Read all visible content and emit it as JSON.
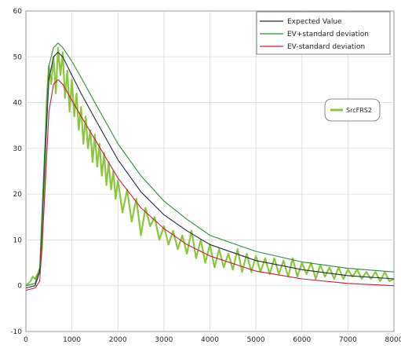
{
  "chart_data": {
    "type": "line",
    "xlim": [
      0,
      8000
    ],
    "ylim": [
      -10,
      60
    ],
    "xticks": [
      0,
      1000,
      2000,
      3000,
      4000,
      5000,
      6000,
      7000,
      8000
    ],
    "yticks": [
      -10,
      0,
      10,
      20,
      30,
      40,
      50,
      60
    ],
    "grid": true,
    "legend": {
      "placement": "top-right",
      "entries": [
        {
          "label": "Expected Value",
          "color": "#1f2a44"
        },
        {
          "label": "EV+standard deviation",
          "color": "#2d8a3a"
        },
        {
          "label": "EV-standard deviation",
          "color": "#c0203a"
        }
      ]
    },
    "annotation": {
      "label": "SrcFRS2",
      "color": "#8cc63f"
    },
    "series": [
      {
        "name": "Expected Value",
        "color": "#1f2a44",
        "x": [
          0,
          200,
          300,
          400,
          500,
          600,
          700,
          800,
          1000,
          1200,
          1500,
          2000,
          2500,
          3000,
          3500,
          4000,
          5000,
          6000,
          7000,
          8000
        ],
        "y": [
          -0.5,
          0,
          3,
          25,
          45,
          50,
          51,
          50,
          46,
          42,
          36.5,
          27.5,
          20.5,
          15.5,
          12,
          9,
          5.5,
          3.5,
          2.2,
          1.5
        ]
      },
      {
        "name": "EV+standard deviation",
        "color": "#2d8a3a",
        "x": [
          0,
          200,
          300,
          400,
          500,
          600,
          700,
          800,
          1000,
          1200,
          1500,
          2000,
          2500,
          3000,
          3500,
          4000,
          5000,
          6000,
          7000,
          8000
        ],
        "y": [
          0,
          0.5,
          4,
          28,
          48,
          52,
          53,
          52,
          49,
          45.5,
          40,
          31,
          24,
          18.5,
          14.5,
          11,
          7.5,
          5.2,
          3.8,
          3
        ]
      },
      {
        "name": "EV-standard deviation",
        "color": "#c0203a",
        "x": [
          0,
          200,
          300,
          400,
          500,
          600,
          700,
          800,
          1000,
          1200,
          1500,
          2000,
          2500,
          3000,
          3500,
          4000,
          5000,
          6000,
          7000,
          8000
        ],
        "y": [
          -1,
          -0.5,
          1,
          18,
          38,
          44,
          45,
          44,
          40.5,
          37,
          32,
          23.5,
          17,
          12.5,
          9,
          6.5,
          3.2,
          1.5,
          0.5,
          0
        ]
      },
      {
        "name": "SrcFRS2",
        "color": "#8cc63f",
        "x": [
          0,
          100,
          150,
          200,
          250,
          300,
          350,
          400,
          450,
          500,
          550,
          600,
          650,
          700,
          750,
          800,
          850,
          900,
          950,
          1000,
          1050,
          1100,
          1150,
          1200,
          1250,
          1300,
          1350,
          1400,
          1450,
          1500,
          1550,
          1600,
          1650,
          1700,
          1750,
          1800,
          1850,
          1900,
          1950,
          2000,
          2100,
          2200,
          2300,
          2400,
          2500,
          2600,
          2700,
          2800,
          2900,
          3000,
          3100,
          3200,
          3300,
          3400,
          3500,
          3600,
          3700,
          3800,
          3900,
          4000,
          4100,
          4200,
          4300,
          4400,
          4500,
          4600,
          4700,
          4800,
          4900,
          5000,
          5100,
          5200,
          5300,
          5400,
          5500,
          5600,
          5700,
          5800,
          5900,
          6000,
          6100,
          6200,
          6300,
          6400,
          6500,
          6600,
          6700,
          6800,
          6900,
          7000,
          7100,
          7200,
          7300,
          7400,
          7500,
          7600,
          7700,
          7800,
          7900,
          8000
        ],
        "y": [
          0,
          1,
          2,
          1.5,
          2.5,
          3,
          8,
          22,
          40,
          48,
          44,
          50,
          42,
          52,
          46,
          51,
          41,
          47,
          38,
          45,
          37,
          42,
          34,
          39,
          31,
          37,
          30,
          34,
          27,
          33,
          26,
          31,
          24,
          29,
          22,
          27,
          21,
          25,
          19,
          23,
          16,
          21,
          14,
          19,
          11,
          17,
          13,
          15,
          10,
          13,
          9,
          12,
          8,
          11,
          7,
          12,
          6,
          10,
          5,
          9,
          4,
          8,
          4,
          7,
          3.5,
          8,
          3,
          7,
          3,
          6.5,
          3,
          6,
          2.5,
          6,
          2.5,
          5.5,
          2,
          6,
          2,
          5,
          2.5,
          5,
          1.5,
          4.5,
          2,
          4,
          1.5,
          4,
          1.5,
          3.5,
          2,
          3.5,
          1.5,
          3,
          1.5,
          3,
          1,
          3,
          1,
          1.5
        ]
      }
    ]
  }
}
